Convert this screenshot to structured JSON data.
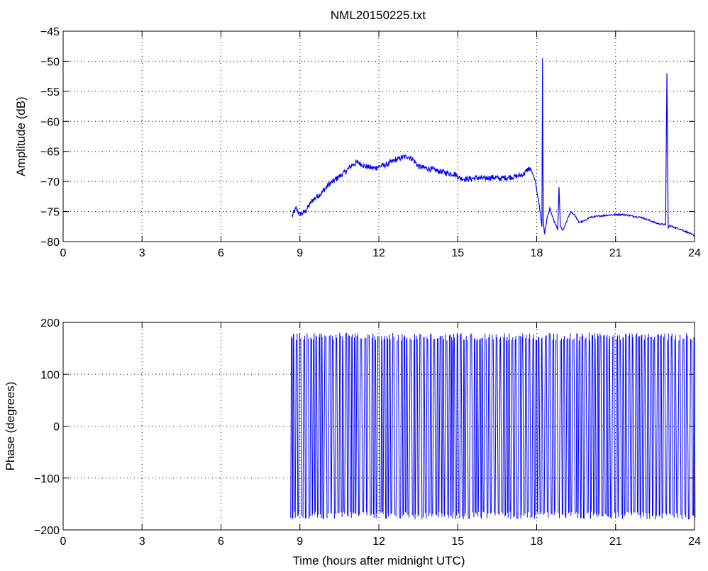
{
  "chart_data": [
    {
      "type": "line",
      "title": "NML20150225.txt",
      "xlabel": "",
      "ylabel": "Amplitude (dB)",
      "xlim": [
        0,
        24
      ],
      "ylim": [
        -80,
        -45
      ],
      "xticks": [
        0,
        3,
        6,
        9,
        12,
        15,
        18,
        21,
        24
      ],
      "yticks": [
        -80,
        -75,
        -70,
        -65,
        -60,
        -55,
        -50,
        -45
      ],
      "ytick_labels": [
        "−80",
        "−75",
        "−70",
        "−65",
        "−60",
        "−55",
        "−50",
        "−45"
      ],
      "grid": true,
      "color": "#0000ff",
      "series": [
        {
          "x": [
            8.7,
            8.85,
            9.0,
            9.2,
            9.5,
            9.8,
            10.1,
            10.4,
            10.7,
            11.0,
            11.2,
            11.5,
            11.8,
            12.0,
            12.3,
            12.6,
            12.9,
            13.1,
            13.3,
            13.5,
            13.8,
            14.0,
            14.3,
            14.6,
            14.9,
            15.1,
            15.4,
            15.7,
            16.0,
            16.3,
            16.6,
            16.9,
            17.2,
            17.5,
            17.7,
            17.8,
            17.95,
            18.1,
            18.2,
            18.22,
            18.25,
            18.3,
            18.4,
            18.5,
            18.65,
            18.8,
            18.85,
            18.9,
            19.0,
            19.15,
            19.3,
            19.45,
            19.6,
            19.8,
            20.0,
            20.3,
            20.7,
            21.0,
            21.3,
            21.7,
            22.0,
            22.3,
            22.6,
            22.9,
            22.95,
            23.0,
            23.05,
            23.2,
            23.5,
            23.8,
            24.0
          ],
          "y": [
            -75.8,
            -74.5,
            -75.5,
            -75.0,
            -73.0,
            -72.0,
            -70.5,
            -69.5,
            -68.5,
            -67.2,
            -66.8,
            -67.5,
            -67.8,
            -67.5,
            -67.2,
            -66.5,
            -66.0,
            -65.8,
            -66.3,
            -67.5,
            -67.8,
            -68.0,
            -68.3,
            -68.6,
            -68.8,
            -69.5,
            -69.6,
            -69.4,
            -69.5,
            -69.3,
            -69.5,
            -69.3,
            -69.2,
            -68.8,
            -67.8,
            -68.2,
            -70.0,
            -74.0,
            -77.5,
            -49.5,
            -76.5,
            -78.7,
            -76.0,
            -74.5,
            -76.5,
            -78.0,
            -71.0,
            -77.5,
            -78.2,
            -76.5,
            -75.0,
            -75.6,
            -76.8,
            -76.6,
            -76.0,
            -75.8,
            -75.6,
            -75.5,
            -75.5,
            -75.8,
            -76.0,
            -76.5,
            -77.0,
            -77.2,
            -52.0,
            -77.8,
            -77.3,
            -77.6,
            -78.0,
            -78.6,
            -79.0
          ]
        }
      ]
    },
    {
      "type": "line",
      "title": "",
      "xlabel": "Time (hours after midnight UTC)",
      "ylabel": "Phase (degrees)",
      "xlim": [
        0,
        24
      ],
      "ylim": [
        -200,
        200
      ],
      "xticks": [
        0,
        3,
        6,
        9,
        12,
        15,
        18,
        21,
        24
      ],
      "yticks": [
        -200,
        -100,
        0,
        100,
        200
      ],
      "ytick_labels": [
        "−200",
        "−100",
        "0",
        "100",
        "200"
      ],
      "grid": true,
      "color": "#0000ff",
      "series": [
        {
          "x_range": [
            8.65,
            24
          ],
          "y_range": [
            -180,
            180
          ],
          "description": "phase wraps rapidly between -180 and 180 degrees throughout the interval"
        }
      ]
    }
  ]
}
